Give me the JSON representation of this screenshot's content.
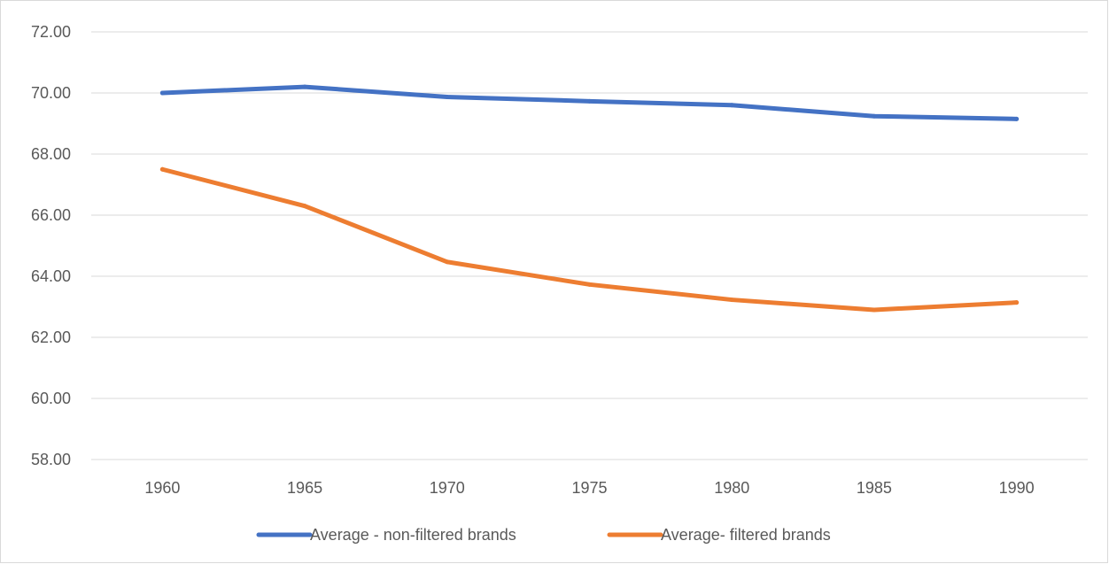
{
  "chart_data": {
    "type": "line",
    "title": "",
    "xlabel": "",
    "ylabel": "",
    "categories": [
      "1960",
      "1965",
      "1970",
      "1975",
      "1980",
      "1985",
      "1990"
    ],
    "ylim": [
      58,
      72
    ],
    "yticks": [
      "58.00",
      "60.00",
      "62.00",
      "64.00",
      "66.00",
      "68.00",
      "70.00",
      "72.00"
    ],
    "grid": true,
    "legend_position": "bottom",
    "series": [
      {
        "name": "Average - non-filtered brands",
        "color": "#4472c4",
        "values": [
          70.0,
          70.2,
          69.87,
          69.73,
          69.6,
          69.24,
          69.15
        ]
      },
      {
        "name": "Average- filtered brands",
        "color": "#ed7d31",
        "values": [
          67.5,
          66.3,
          64.47,
          63.73,
          63.23,
          62.9,
          63.14
        ]
      }
    ]
  }
}
